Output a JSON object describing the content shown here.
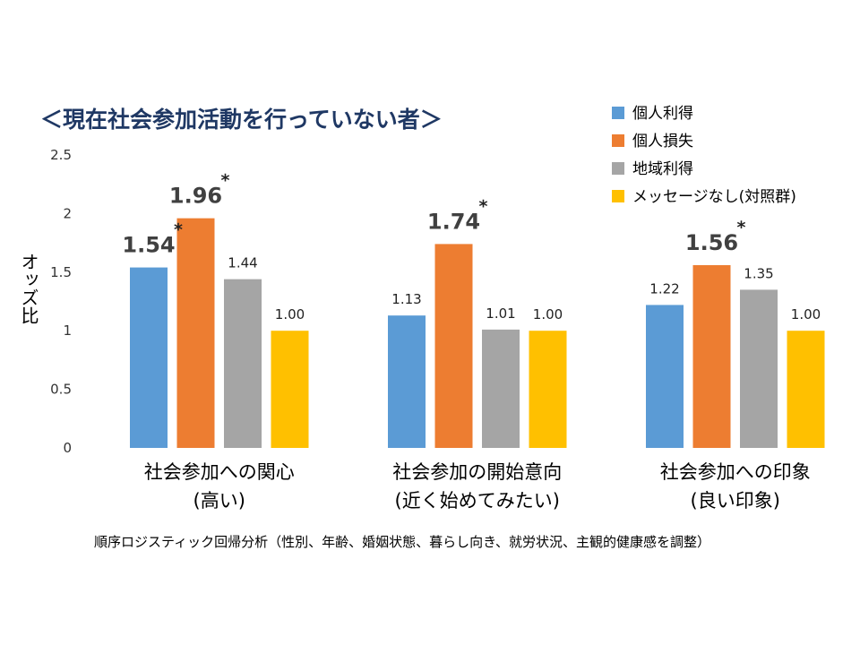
{
  "chart_data": {
    "type": "bar",
    "title": "＜現在社会参加活動を行っていない者＞",
    "ylabel": "オッズ比",
    "ylim": [
      0,
      2.5
    ],
    "yticks": [
      "0",
      "0.5",
      "1",
      "1.5",
      "2",
      "2.5"
    ],
    "ytick_values": [
      0,
      0.5,
      1,
      1.5,
      2,
      2.5
    ],
    "grid": false,
    "legend_position": "top-right",
    "categories": [
      {
        "line1": "社会参加への関心",
        "line2": "(高い)"
      },
      {
        "line1": "社会参加の開始意向",
        "line2": "(近く始めてみたい)"
      },
      {
        "line1": "社会参加への印象",
        "line2": "(良い印象)"
      }
    ],
    "series": [
      {
        "name": "個人利得",
        "color": "#5b9bd5",
        "values": [
          1.54,
          1.13,
          1.22
        ],
        "labels": [
          "1.54",
          "1.13",
          "1.22"
        ],
        "significant": [
          true,
          false,
          false
        ]
      },
      {
        "name": "個人損失",
        "color": "#ed7d31",
        "values": [
          1.96,
          1.74,
          1.56
        ],
        "labels": [
          "1.96",
          "1.74",
          "1.56"
        ],
        "significant": [
          true,
          true,
          true
        ]
      },
      {
        "name": "地域利得",
        "color": "#a5a5a5",
        "values": [
          1.44,
          1.01,
          1.35
        ],
        "labels": [
          "1.44",
          "1.01",
          "1.35"
        ],
        "significant": [
          false,
          false,
          false
        ]
      },
      {
        "name": "メッセージなし(対照群)",
        "color": "#ffc000",
        "values": [
          1.0,
          1.0,
          1.0
        ],
        "labels": [
          "1.00",
          "1.00",
          "1.00"
        ],
        "significant": [
          false,
          false,
          false
        ]
      }
    ],
    "significance_mark": "*",
    "note": "順序ロジスティック回帰分析（性別、年齢、婚姻状態、暮らし向き、就労状況、主観的健康感を調整）"
  }
}
